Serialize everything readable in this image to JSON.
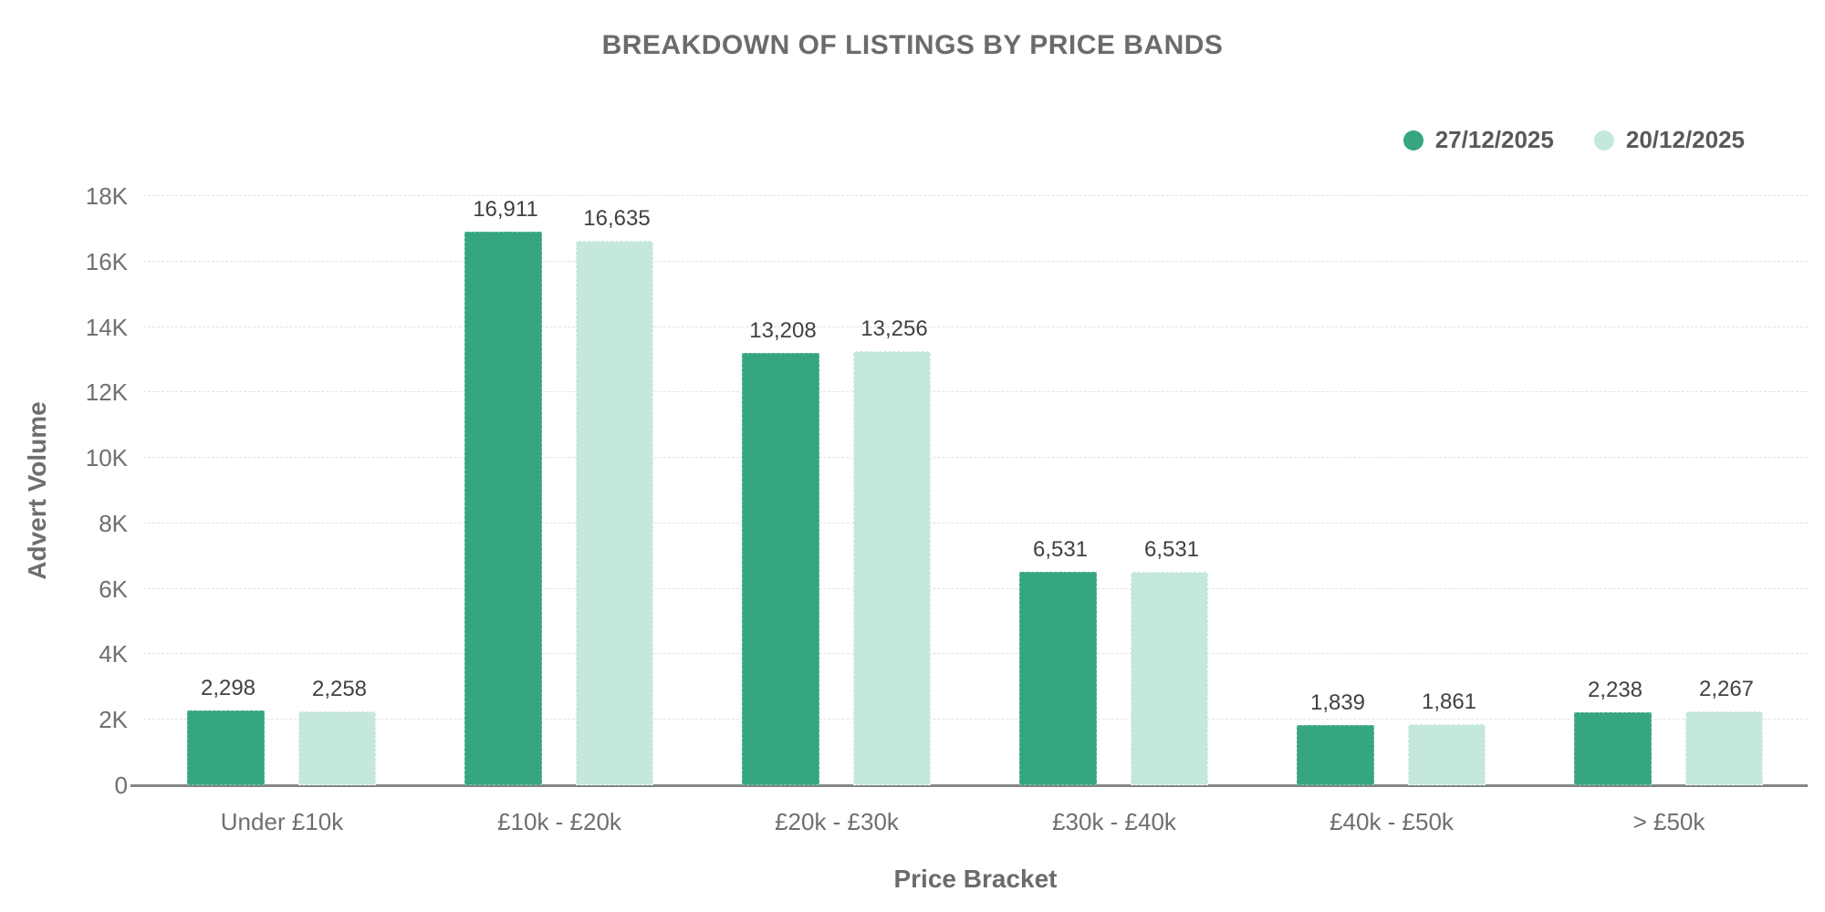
{
  "title": "BREAKDOWN OF LISTINGS BY PRICE BANDS",
  "colors": {
    "series_current": "#35a67f",
    "series_previous": "#c4e8db",
    "grid": "#e1e1e1",
    "axis_line": "#858585",
    "text_gray": "#6f6f6f",
    "value_text": "#414141"
  },
  "chart_data": {
    "type": "bar",
    "title": "BREAKDOWN OF LISTINGS BY PRICE BANDS",
    "xlabel": "Price Bracket",
    "ylabel": "Advert Volume",
    "ylim": [
      0,
      18000
    ],
    "yticks": [
      "0",
      "2K",
      "4K",
      "6K",
      "8K",
      "10K",
      "12K",
      "14K",
      "16K",
      "18K"
    ],
    "grid": true,
    "legend_position": "top-right",
    "categories": [
      "Under £10k",
      "£10k - £20k",
      "£20k - £30k",
      "£30k - £40k",
      "£40k - £50k",
      "> £50k"
    ],
    "series": [
      {
        "name": "27/12/2025",
        "color": "#35a67f",
        "values": [
          2298,
          16911,
          13208,
          6531,
          1839,
          2238
        ],
        "labels": [
          "2,298",
          "16,911",
          "13,208",
          "6,531",
          "1,839",
          "2,238"
        ]
      },
      {
        "name": "20/12/2025",
        "color": "#c4e8db",
        "values": [
          2258,
          16635,
          13256,
          6531,
          1861,
          2267
        ],
        "labels": [
          "2,258",
          "16,635",
          "13,256",
          "6,531",
          "1,861",
          "2,267"
        ]
      }
    ]
  }
}
